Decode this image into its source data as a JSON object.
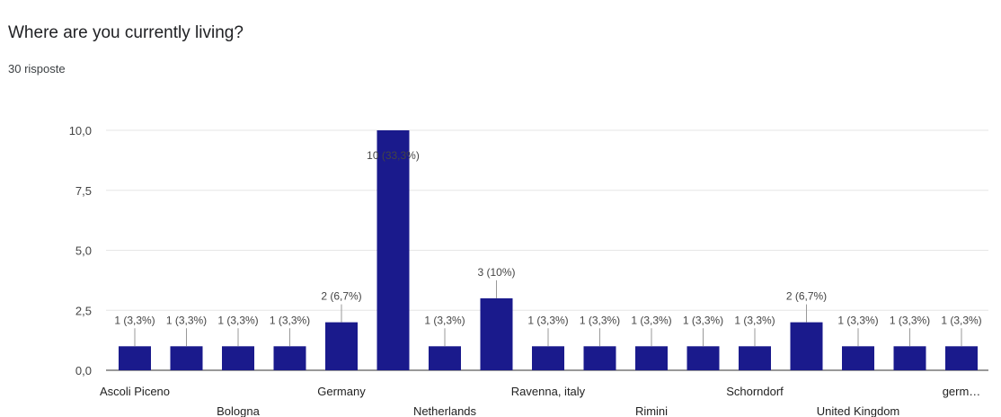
{
  "question": {
    "title": "Where are you currently living?",
    "responses": "30 risposte"
  },
  "colors": {
    "bar": "#1a1a8c",
    "grid": "#e6e6e6",
    "axis": "#333333"
  },
  "chart_data": {
    "type": "bar",
    "title": "",
    "xlabel": "",
    "ylabel": "",
    "ylim": [
      0,
      10
    ],
    "yticks": [
      "0,0",
      "2,5",
      "5,0",
      "7,5",
      "10,0"
    ],
    "ytick_values": [
      0,
      2.5,
      5,
      7.5,
      10
    ],
    "grid": true,
    "categories": [
      "Ascoli Piceno",
      "",
      "Bologna",
      "",
      "Germany",
      "",
      "Netherlands",
      "",
      "Ravenna, italy",
      "",
      "Rimini",
      "",
      "Schorndorf",
      "",
      "United Kingdom",
      "",
      "germ…"
    ],
    "values": [
      1,
      1,
      1,
      1,
      2,
      10,
      1,
      3,
      1,
      1,
      1,
      1,
      1,
      2,
      1,
      1,
      1
    ],
    "data_labels": [
      "1 (3,3%)",
      "1 (3,3%)",
      "1 (3,3%)",
      "1 (3,3%)",
      "2 (6,7%)",
      "10 (33,3%)",
      "1 (3,3%)",
      "3 (10%)",
      "1 (3,3%)",
      "1 (3,3%)",
      "1 (3,3%)",
      "1 (3,3%)",
      "1 (3,3%)",
      "2 (6,7%)",
      "1 (3,3%)",
      "1 (3,3%)",
      "1 (3,3%)"
    ]
  }
}
